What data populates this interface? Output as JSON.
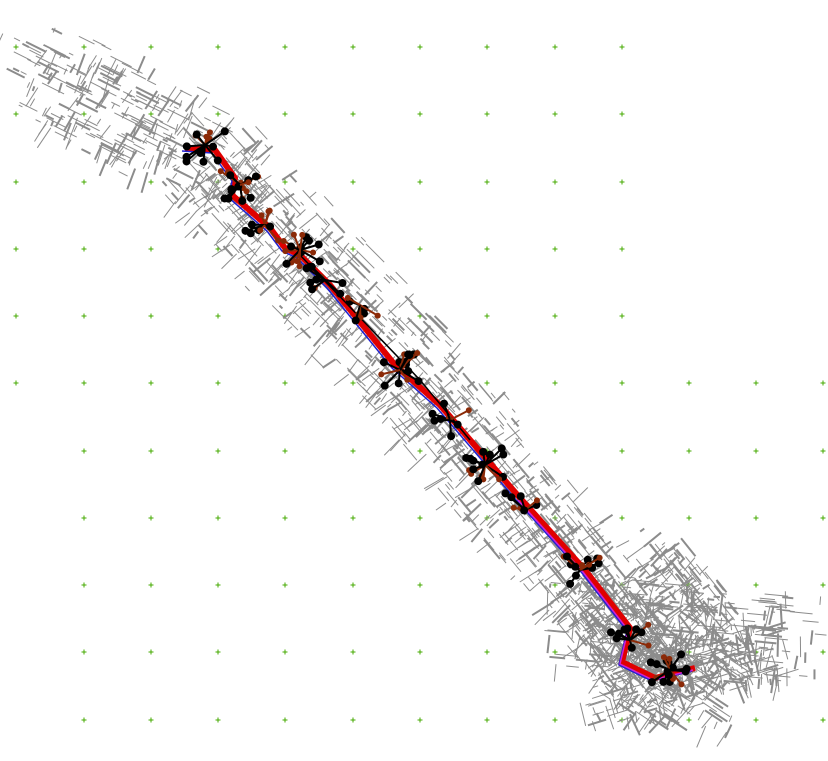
{
  "drawing": {
    "background": "#ffffff",
    "grid_marker_color": "#44aa00",
    "street_color": "#8c8c8c",
    "route_red_color": "#e00000",
    "route_blue_color": "#2020d0",
    "route_magenta_color": "#d020d0",
    "black_node_color": "#000000",
    "brown_node_color": "#8b2a08"
  },
  "layers": [
    {
      "name": "grid-markers",
      "color": "#44aa00"
    },
    {
      "name": "street-network",
      "color": "#8c8c8c"
    },
    {
      "name": "corridor-red",
      "color": "#e00000"
    },
    {
      "name": "corridor-blue",
      "color": "#2020d0"
    },
    {
      "name": "nodes-black",
      "color": "#000000"
    },
    {
      "name": "nodes-brown",
      "color": "#8b2a08"
    }
  ]
}
